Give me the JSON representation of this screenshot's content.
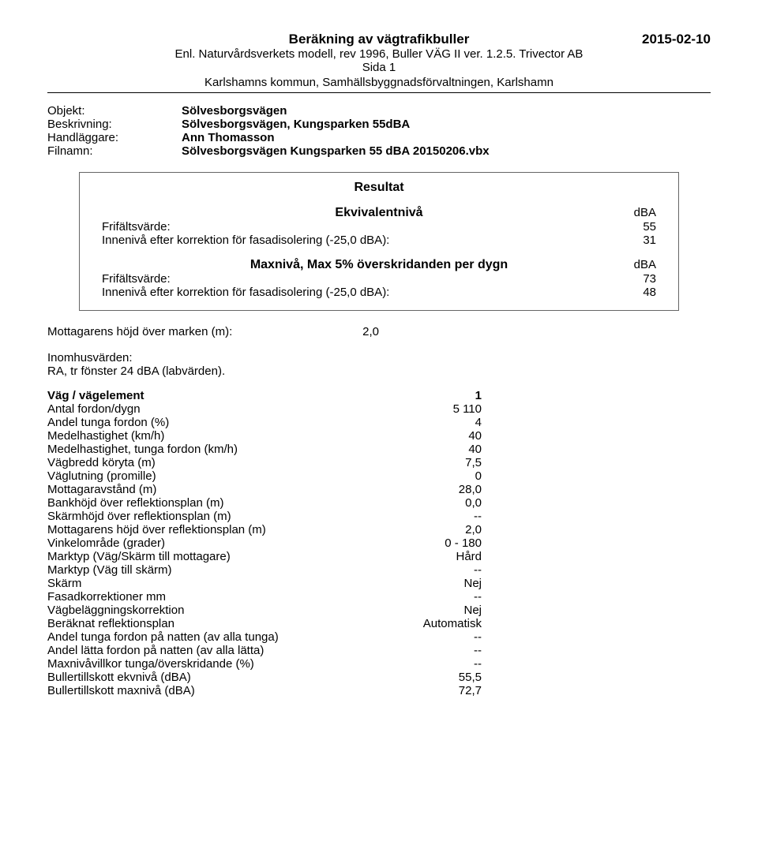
{
  "header": {
    "title": "Beräkning av vägtrafikbuller",
    "date": "2015-02-10",
    "subtitle": "Enl. Naturvårdsverkets modell, rev 1996, Buller VÄG II ver. 1.2.5. Trivector AB",
    "page": "Sida 1",
    "org": "Karlshamns kommun, Samhällsbyggnadsförvaltningen, Karlshamn"
  },
  "meta": {
    "objekt_label": "Objekt:",
    "objekt_value": "Sölvesborgsvägen",
    "beskrivning_label": "Beskrivning:",
    "beskrivning_value": "Sölvesborgsvägen, Kungsparken 55dBA",
    "handlaggare_label": "Handläggare:",
    "handlaggare_value": "Ann Thomasson",
    "filnamn_label": "Filnamn:",
    "filnamn_value": "Sölvesborgsvägen Kungsparken 55 dBA 20150206.vbx"
  },
  "resultat": {
    "title": "Resultat",
    "ekv_title": "Ekvivalentnivå",
    "unit": "dBA",
    "frifalt_label": "Frifältsvärde:",
    "inneniva_label": "Innenivå efter korrektion för fasadisolering (-25,0 dBA):",
    "ekv_frifalt": "55",
    "ekv_inneniva": "31",
    "max_title": "Maxnivå, Max 5% överskridanden per dygn",
    "max_frifalt": "73",
    "max_inneniva": "48"
  },
  "mottagare": {
    "label": "Mottagarens höjd över marken (m):",
    "value": "2,0"
  },
  "inomhus": {
    "label": "Inomhusvärden:",
    "text": "RA, tr fönster 24 dBA (labvärden)."
  },
  "params": [
    {
      "label": "Väg / vägelement",
      "value": "1"
    },
    {
      "label": "Antal fordon/dygn",
      "value": "5 110"
    },
    {
      "label": "Andel tunga fordon (%)",
      "value": "4"
    },
    {
      "label": "Medelhastighet (km/h)",
      "value": "40"
    },
    {
      "label": "Medelhastighet, tunga fordon (km/h)",
      "value": "40"
    },
    {
      "label": "Vägbredd köryta (m)",
      "value": "7,5"
    },
    {
      "label": "Väglutning (promille)",
      "value": "0"
    },
    {
      "label": "Mottagaravstånd (m)",
      "value": "28,0"
    },
    {
      "label": "Bankhöjd över reflektionsplan (m)",
      "value": "0,0"
    },
    {
      "label": "Skärmhöjd över reflektionsplan (m)",
      "value": "--"
    },
    {
      "label": "Mottagarens höjd över reflektionsplan (m)",
      "value": "2,0"
    },
    {
      "label": "Vinkelområde (grader)",
      "value": "0 - 180"
    },
    {
      "label": "Marktyp (Väg/Skärm till mottagare)",
      "value": "Hård"
    },
    {
      "label": "Marktyp (Väg till skärm)",
      "value": "--"
    },
    {
      "label": "Skärm",
      "value": "Nej"
    },
    {
      "label": "Fasadkorrektioner mm",
      "value": "--"
    },
    {
      "label": "Vägbeläggningskorrektion",
      "value": "Nej"
    },
    {
      "label": "Beräknat reflektionsplan",
      "value": "Automatisk"
    },
    {
      "label": "Andel tunga fordon på natten (av alla tunga)",
      "value": "--"
    },
    {
      "label": "Andel lätta fordon på natten (av alla lätta)",
      "value": "--"
    },
    {
      "label": "Maxnivåvillkor tunga/överskridande (%)",
      "value": "--"
    },
    {
      "label": "Bullertillskott ekvnivå (dBA)",
      "value": "55,5"
    },
    {
      "label": "Bullertillskott maxnivå (dBA)",
      "value": "72,7"
    }
  ]
}
